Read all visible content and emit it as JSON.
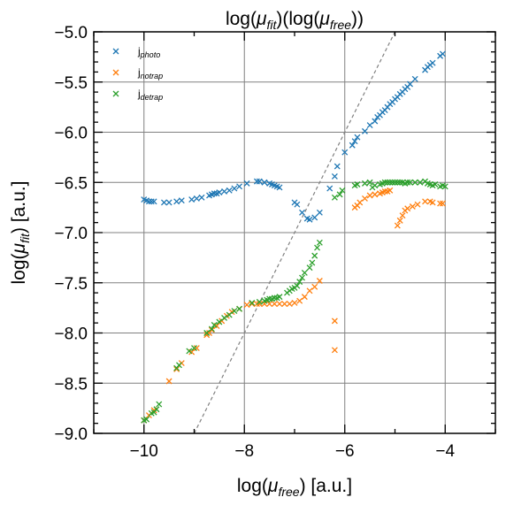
{
  "chart_data": {
    "type": "scatter",
    "title": {
      "pre": "log(",
      "sym": "μ",
      "sub1": "fit",
      "mid": ")(log(",
      "sym2": "μ",
      "sub2": "free",
      "post": "))"
    },
    "xlabel": {
      "pre": "log(",
      "sym": "μ",
      "sub": "free",
      "post": ") [a.u.]"
    },
    "ylabel": {
      "pre": "log(",
      "sym": "μ",
      "sub": "fit",
      "post": ") [a.u.]"
    },
    "xlim": [
      -11,
      -3
    ],
    "ylim": [
      -9,
      -5
    ],
    "xticks": [
      -10,
      -8,
      -6,
      -4
    ],
    "xtick_labels": [
      "−10",
      "−8",
      "−6",
      "−4"
    ],
    "yticks": [
      -9,
      -8.5,
      -8,
      -7.5,
      -7,
      -6.5,
      -6,
      -5.5,
      -5
    ],
    "ytick_labels": [
      "−9.0",
      "−8.5",
      "−8.0",
      "−7.5",
      "−7.0",
      "−6.5",
      "−6.0",
      "−5.5",
      "−5.0"
    ],
    "grid": true,
    "legend_position": "top-left",
    "reference_line": {
      "style": "dashed",
      "color": "#808080",
      "points": [
        [
          -9,
          -9
        ],
        [
          -5,
          -5
        ]
      ]
    },
    "series": [
      {
        "name": "j_photo",
        "label_base": "j",
        "label_sub": "photo",
        "color": "#1f77b4",
        "points": [
          [
            -10.0,
            -6.67
          ],
          [
            -9.95,
            -6.68
          ],
          [
            -9.9,
            -6.69
          ],
          [
            -9.85,
            -6.69
          ],
          [
            -9.8,
            -6.69
          ],
          [
            -9.6,
            -6.7
          ],
          [
            -9.5,
            -6.7
          ],
          [
            -9.35,
            -6.69
          ],
          [
            -9.25,
            -6.68
          ],
          [
            -9.05,
            -6.67
          ],
          [
            -8.95,
            -6.66
          ],
          [
            -8.85,
            -6.65
          ],
          [
            -8.7,
            -6.63
          ],
          [
            -8.65,
            -6.62
          ],
          [
            -8.6,
            -6.61
          ],
          [
            -8.55,
            -6.61
          ],
          [
            -8.5,
            -6.6
          ],
          [
            -8.4,
            -6.59
          ],
          [
            -8.3,
            -6.58
          ],
          [
            -8.2,
            -6.56
          ],
          [
            -8.1,
            -6.54
          ],
          [
            -7.95,
            -6.51
          ],
          [
            -7.75,
            -6.49
          ],
          [
            -7.7,
            -6.49
          ],
          [
            -7.6,
            -6.5
          ],
          [
            -7.5,
            -6.51
          ],
          [
            -7.45,
            -6.52
          ],
          [
            -7.4,
            -6.53
          ],
          [
            -7.35,
            -6.54
          ],
          [
            -7.3,
            -6.55
          ],
          [
            -7.0,
            -6.7
          ],
          [
            -6.95,
            -6.72
          ],
          [
            -6.85,
            -6.8
          ],
          [
            -6.75,
            -6.86
          ],
          [
            -6.7,
            -6.87
          ],
          [
            -6.6,
            -6.85
          ],
          [
            -6.5,
            -6.8
          ],
          [
            -6.3,
            -6.56
          ],
          [
            -6.2,
            -6.44
          ],
          [
            -6.15,
            -6.34
          ],
          [
            -6.0,
            -6.2
          ],
          [
            -5.85,
            -6.13
          ],
          [
            -5.8,
            -6.09
          ],
          [
            -5.75,
            -6.05
          ],
          [
            -5.6,
            -5.99
          ],
          [
            -5.5,
            -5.93
          ],
          [
            -5.4,
            -5.89
          ],
          [
            -5.35,
            -5.85
          ],
          [
            -5.3,
            -5.83
          ],
          [
            -5.25,
            -5.8
          ],
          [
            -5.2,
            -5.78
          ],
          [
            -5.15,
            -5.75
          ],
          [
            -5.1,
            -5.72
          ],
          [
            -5.05,
            -5.7
          ],
          [
            -5.0,
            -5.67
          ],
          [
            -4.95,
            -5.65
          ],
          [
            -4.9,
            -5.62
          ],
          [
            -4.85,
            -5.6
          ],
          [
            -4.8,
            -5.57
          ],
          [
            -4.75,
            -5.55
          ],
          [
            -4.7,
            -5.52
          ],
          [
            -4.6,
            -5.47
          ],
          [
            -4.4,
            -5.38
          ],
          [
            -4.35,
            -5.35
          ],
          [
            -4.3,
            -5.33
          ],
          [
            -4.25,
            -5.31
          ],
          [
            -4.1,
            -5.24
          ],
          [
            -4.05,
            -5.22
          ]
        ]
      },
      {
        "name": "j_notrap",
        "label_base": "j",
        "label_sub": "notrap",
        "color": "#ff7f0e",
        "points": [
          [
            -10.0,
            -8.87
          ],
          [
            -9.9,
            -8.82
          ],
          [
            -9.8,
            -8.77
          ],
          [
            -9.5,
            -8.48
          ],
          [
            -9.35,
            -8.36
          ],
          [
            -9.25,
            -8.3
          ],
          [
            -9.05,
            -8.19
          ],
          [
            -8.95,
            -8.15
          ],
          [
            -8.75,
            -8.02
          ],
          [
            -8.7,
            -8.0
          ],
          [
            -8.65,
            -7.97
          ],
          [
            -8.55,
            -7.93
          ],
          [
            -8.45,
            -7.88
          ],
          [
            -8.35,
            -7.83
          ],
          [
            -8.25,
            -7.79
          ],
          [
            -8.1,
            -7.76
          ],
          [
            -7.95,
            -7.72
          ],
          [
            -7.85,
            -7.71
          ],
          [
            -7.75,
            -7.71
          ],
          [
            -7.7,
            -7.71
          ],
          [
            -7.6,
            -7.71
          ],
          [
            -7.5,
            -7.71
          ],
          [
            -7.4,
            -7.71
          ],
          [
            -7.3,
            -7.71
          ],
          [
            -7.2,
            -7.71
          ],
          [
            -7.1,
            -7.71
          ],
          [
            -7.0,
            -7.7
          ],
          [
            -6.9,
            -7.68
          ],
          [
            -6.8,
            -7.64
          ],
          [
            -6.7,
            -7.58
          ],
          [
            -6.6,
            -7.54
          ],
          [
            -6.5,
            -7.48
          ],
          [
            -6.2,
            -7.88
          ],
          [
            -6.2,
            -8.17
          ],
          [
            -5.8,
            -6.75
          ],
          [
            -5.75,
            -6.73
          ],
          [
            -5.7,
            -6.7
          ],
          [
            -5.6,
            -6.66
          ],
          [
            -5.5,
            -6.63
          ],
          [
            -5.4,
            -6.62
          ],
          [
            -5.3,
            -6.61
          ],
          [
            -5.25,
            -6.6
          ],
          [
            -5.2,
            -6.59
          ],
          [
            -5.15,
            -6.59
          ],
          [
            -5.1,
            -6.58
          ],
          [
            -4.95,
            -6.93
          ],
          [
            -4.9,
            -6.88
          ],
          [
            -4.85,
            -6.83
          ],
          [
            -4.8,
            -6.78
          ],
          [
            -4.75,
            -6.76
          ],
          [
            -4.65,
            -6.74
          ],
          [
            -4.55,
            -6.72
          ],
          [
            -4.4,
            -6.69
          ],
          [
            -4.3,
            -6.69
          ],
          [
            -4.25,
            -6.7
          ],
          [
            -4.1,
            -6.71
          ],
          [
            -4.05,
            -6.71
          ]
        ]
      },
      {
        "name": "j_detrap",
        "label_base": "j",
        "label_sub": "detrap",
        "color": "#2ca02c",
        "points": [
          [
            -10.0,
            -8.87
          ],
          [
            -9.95,
            -8.86
          ],
          [
            -9.85,
            -8.8
          ],
          [
            -9.8,
            -8.79
          ],
          [
            -9.75,
            -8.76
          ],
          [
            -9.7,
            -8.71
          ],
          [
            -9.35,
            -8.35
          ],
          [
            -9.3,
            -8.32
          ],
          [
            -9.1,
            -8.18
          ],
          [
            -9.0,
            -8.15
          ],
          [
            -8.75,
            -8.0
          ],
          [
            -8.65,
            -7.96
          ],
          [
            -8.6,
            -7.92
          ],
          [
            -8.5,
            -7.89
          ],
          [
            -8.4,
            -7.85
          ],
          [
            -8.3,
            -7.82
          ],
          [
            -8.2,
            -7.78
          ],
          [
            -8.1,
            -7.76
          ],
          [
            -7.85,
            -7.7
          ],
          [
            -7.7,
            -7.69
          ],
          [
            -7.6,
            -7.68
          ],
          [
            -7.55,
            -7.67
          ],
          [
            -7.5,
            -7.66
          ],
          [
            -7.45,
            -7.66
          ],
          [
            -7.4,
            -7.65
          ],
          [
            -7.35,
            -7.65
          ],
          [
            -7.3,
            -7.64
          ],
          [
            -7.15,
            -7.6
          ],
          [
            -7.1,
            -7.58
          ],
          [
            -7.05,
            -7.56
          ],
          [
            -7.0,
            -7.55
          ],
          [
            -6.95,
            -7.53
          ],
          [
            -6.9,
            -7.49
          ],
          [
            -6.85,
            -7.45
          ],
          [
            -6.8,
            -7.4
          ],
          [
            -6.7,
            -7.35
          ],
          [
            -6.65,
            -7.3
          ],
          [
            -6.6,
            -7.23
          ],
          [
            -6.55,
            -7.15
          ],
          [
            -6.5,
            -7.1
          ],
          [
            -6.2,
            -6.65
          ],
          [
            -6.1,
            -6.62
          ],
          [
            -6.05,
            -6.58
          ],
          [
            -5.8,
            -6.53
          ],
          [
            -5.75,
            -6.52
          ],
          [
            -5.6,
            -6.51
          ],
          [
            -5.5,
            -6.5
          ],
          [
            -5.45,
            -6.55
          ],
          [
            -5.4,
            -6.53
          ],
          [
            -5.3,
            -6.52
          ],
          [
            -5.25,
            -6.51
          ],
          [
            -5.2,
            -6.5
          ],
          [
            -5.15,
            -6.5
          ],
          [
            -5.1,
            -6.5
          ],
          [
            -5.05,
            -6.5
          ],
          [
            -5.0,
            -6.5
          ],
          [
            -4.95,
            -6.5
          ],
          [
            -4.9,
            -6.5
          ],
          [
            -4.85,
            -6.5
          ],
          [
            -4.8,
            -6.51
          ],
          [
            -4.75,
            -6.5
          ],
          [
            -4.7,
            -6.5
          ],
          [
            -4.6,
            -6.5
          ],
          [
            -4.5,
            -6.5
          ],
          [
            -4.4,
            -6.49
          ],
          [
            -4.35,
            -6.51
          ],
          [
            -4.3,
            -6.52
          ],
          [
            -4.25,
            -6.53
          ],
          [
            -4.2,
            -6.52
          ],
          [
            -4.1,
            -6.54
          ],
          [
            -4.05,
            -6.53
          ],
          [
            -4.0,
            -6.54
          ]
        ]
      }
    ]
  }
}
